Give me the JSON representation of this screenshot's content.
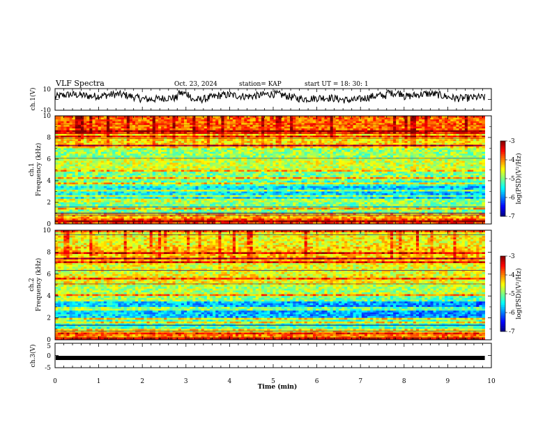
{
  "header": {
    "title": "VLF Spectra",
    "date": "Oct. 23, 2024",
    "station": "station= KAP",
    "start": "start UT =  18: 30: 1"
  },
  "chart_data": [
    {
      "name": "ch1-waveform",
      "type": "line",
      "ylabel": "ch.1(V)",
      "ylim": [
        -10,
        10
      ],
      "xlim": [
        0,
        10
      ],
      "yticks": [
        "10",
        "-10"
      ],
      "x_extent_min": 9.85,
      "color": "#000000"
    },
    {
      "name": "ch1-spectrogram",
      "type": "heatmap",
      "ylabel": "ch.1\nFrequency (kHz)",
      "ylim": [
        0,
        10
      ],
      "yticks": [
        "10",
        "8",
        "6",
        "4",
        "2",
        "0"
      ],
      "xlim": [
        0,
        10
      ],
      "x_extent_min": 9.85,
      "colorbar": {
        "label": "log(PSD)(V²/Hz)",
        "ticks": [
          "-3",
          "-4",
          "-5",
          "-6",
          "-7"
        ],
        "range": [
          -7,
          -3
        ]
      },
      "band_means_khz_log": [
        {
          "f": [
            0.0,
            0.5
          ],
          "v": -3.8
        },
        {
          "f": [
            0.5,
            1.0
          ],
          "v": -4.2
        },
        {
          "f": [
            1.0,
            2.0
          ],
          "v": -5.0
        },
        {
          "f": [
            2.0,
            3.5
          ],
          "v": -5.4
        },
        {
          "f": [
            3.5,
            5.0
          ],
          "v": -5.0
        },
        {
          "f": [
            5.0,
            6.0
          ],
          "v": -4.7
        },
        {
          "f": [
            6.0,
            7.0
          ],
          "v": -4.9
        },
        {
          "f": [
            7.0,
            8.5
          ],
          "v": -4.4
        },
        {
          "f": [
            8.5,
            10.0
          ],
          "v": -3.9
        }
      ]
    },
    {
      "name": "ch2-spectrogram",
      "type": "heatmap",
      "ylabel": "ch.2\nFrequency (kHz)",
      "ylim": [
        0,
        10
      ],
      "yticks": [
        "10",
        "8",
        "6",
        "4",
        "2",
        "0"
      ],
      "xlim": [
        0,
        10
      ],
      "x_extent_min": 9.85,
      "colorbar": {
        "label": "log(PSD)(V²/Hz)",
        "ticks": [
          "-3",
          "-4",
          "-5",
          "-6",
          "-7"
        ],
        "range": [
          -7,
          -3
        ]
      },
      "band_means_khz_log": [
        {
          "f": [
            0.0,
            0.5
          ],
          "v": -4.0
        },
        {
          "f": [
            0.5,
            1.0
          ],
          "v": -4.4
        },
        {
          "f": [
            1.0,
            2.0
          ],
          "v": -5.2
        },
        {
          "f": [
            2.0,
            3.5
          ],
          "v": -5.6
        },
        {
          "f": [
            3.5,
            5.0
          ],
          "v": -4.8
        },
        {
          "f": [
            5.0,
            6.0
          ],
          "v": -4.5
        },
        {
          "f": [
            6.0,
            7.0
          ],
          "v": -4.6
        },
        {
          "f": [
            7.0,
            8.5
          ],
          "v": -4.3
        },
        {
          "f": [
            8.5,
            10.0
          ],
          "v": -4.5
        }
      ]
    },
    {
      "name": "ch3-trace",
      "type": "line",
      "ylabel": "ch.3(V)",
      "ylim": [
        -5,
        5
      ],
      "yticks": [
        "5",
        "0",
        "-5"
      ],
      "xlim": [
        0,
        10
      ],
      "x_extent_min": 9.85,
      "value_V": -1.0,
      "color": "#000000"
    }
  ],
  "xaxis": {
    "label": "Time (min)",
    "ticks": [
      "0",
      "1",
      "2",
      "3",
      "4",
      "5",
      "6",
      "7",
      "8",
      "9",
      "10"
    ]
  }
}
